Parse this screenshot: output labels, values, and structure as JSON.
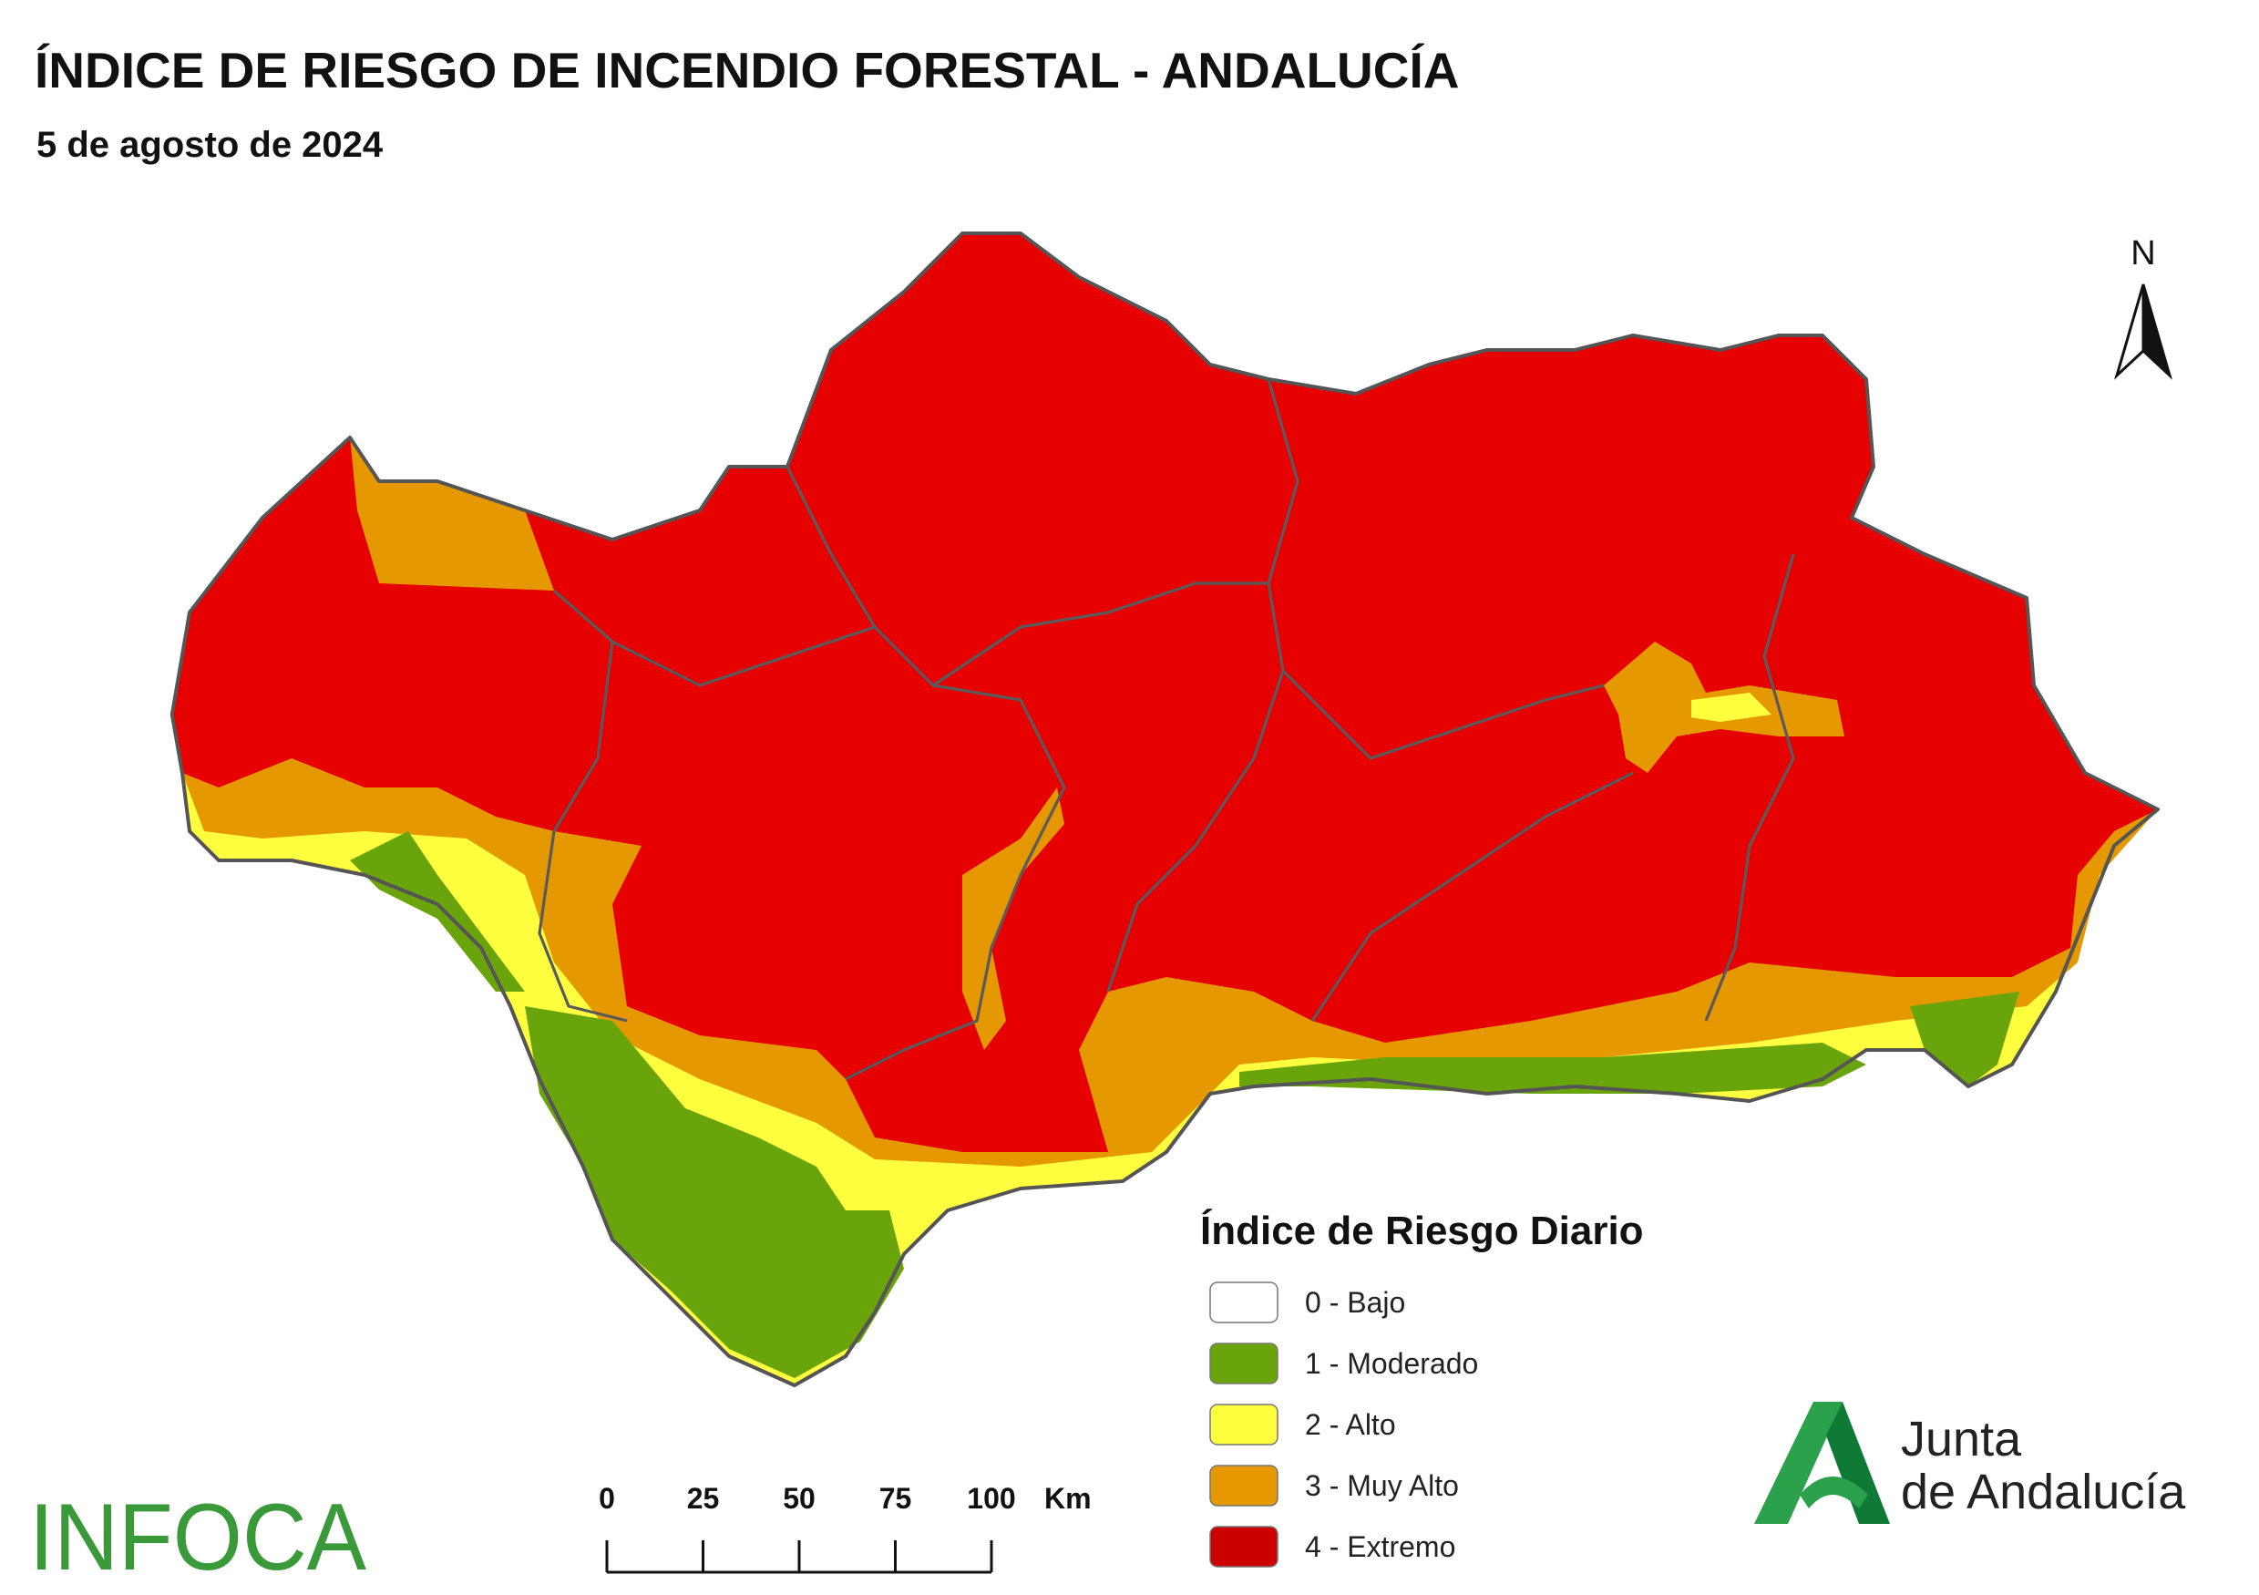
{
  "header": {
    "title": "ÍNDICE DE RIESGO DE INCENDIO FORESTAL - ANDALUCÍA",
    "subtitle": "5 de agosto de 2024"
  },
  "north_label": "N",
  "legend": {
    "title": "Índice de Riesgo Diario",
    "items": [
      {
        "label": "0 - Bajo",
        "color": "#ffffff"
      },
      {
        "label": "1 - Moderado",
        "color": "#6aa40b"
      },
      {
        "label": "2 - Alto",
        "color": "#ffff40"
      },
      {
        "label": "3 - Muy Alto",
        "color": "#e69800"
      },
      {
        "label": "4 - Extremo",
        "color": "#cc0000"
      }
    ]
  },
  "scale_bar": {
    "ticks": [
      0,
      25,
      50,
      75,
      100
    ],
    "unit": "Km"
  },
  "logos": {
    "infoca": "INFOCA",
    "junta_line1": "Junta",
    "junta_line2": "de Andalucía"
  }
}
